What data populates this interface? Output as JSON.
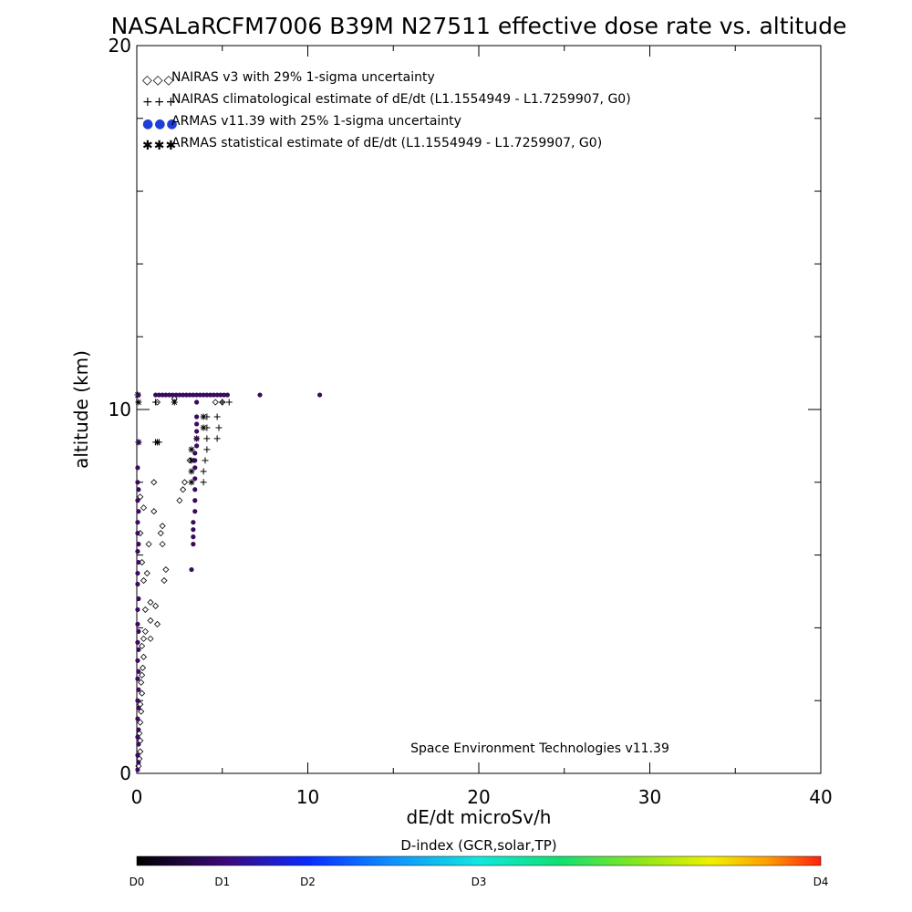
{
  "chart_data": {
    "type": "scatter",
    "title": "NASALaRCFM7006  B39M N27511 effective dose rate vs. altitude",
    "xlabel": "dE/dt microSv/h",
    "ylabel": "altitude (km)",
    "xlim": [
      0,
      40
    ],
    "ylim": [
      0,
      20
    ],
    "x_ticks": [
      0,
      10,
      20,
      30,
      40
    ],
    "y_ticks": [
      0,
      10,
      20
    ],
    "x_minor_step": 5,
    "y_minor_step": 2,
    "grid": false,
    "legend_position": "top-left",
    "credit": "Space Environment Technologies v11.39",
    "legend": [
      {
        "symbols": "◇◇◇",
        "label": "NAIRAS v3 with 29% 1-sigma uncertainty",
        "color": "#000000"
      },
      {
        "symbols": "+++",
        "label": "NAIRAS climatological estimate of dE/dt (L1.1554949 - L1.7259907, G0)",
        "color": "#000000"
      },
      {
        "symbols": "●●●",
        "label": "ARMAS v11.39 with 25% 1-sigma uncertainty",
        "color": "#1f3fd8"
      },
      {
        "symbols": "✱✱✱",
        "label": "ARMAS statistical estimate of dE/dt (L1.1554949 - L1.7259907, G0)",
        "color": "#000000"
      }
    ],
    "series": [
      {
        "name": "NAIRAS v3 with 29% 1-sigma uncertainty",
        "marker": "diamond",
        "color": "#000000",
        "points": [
          [
            0.1,
            0.2
          ],
          [
            0.15,
            0.4
          ],
          [
            0.2,
            0.6
          ],
          [
            0.2,
            0.9
          ],
          [
            0.15,
            1.1
          ],
          [
            0.2,
            1.4
          ],
          [
            0.25,
            1.7
          ],
          [
            0.2,
            1.9
          ],
          [
            0.3,
            2.2
          ],
          [
            0.25,
            2.5
          ],
          [
            0.3,
            2.7
          ],
          [
            0.35,
            2.9
          ],
          [
            0.4,
            3.2
          ],
          [
            0.3,
            3.5
          ],
          [
            0.4,
            3.7
          ],
          [
            0.5,
            3.9
          ],
          [
            0.8,
            3.7
          ],
          [
            0.8,
            4.2
          ],
          [
            1.2,
            4.1
          ],
          [
            0.5,
            4.5
          ],
          [
            1.1,
            4.6
          ],
          [
            0.8,
            4.7
          ],
          [
            0.4,
            5.3
          ],
          [
            0.6,
            5.5
          ],
          [
            1.6,
            5.3
          ],
          [
            1.7,
            5.6
          ],
          [
            0.3,
            5.8
          ],
          [
            0.7,
            6.3
          ],
          [
            1.5,
            6.3
          ],
          [
            0.2,
            6.6
          ],
          [
            1.4,
            6.6
          ],
          [
            1.5,
            6.8
          ],
          [
            1.0,
            7.2
          ],
          [
            0.4,
            7.3
          ],
          [
            0.2,
            7.6
          ],
          [
            2.5,
            7.5
          ],
          [
            2.7,
            7.8
          ],
          [
            2.8,
            8.0
          ],
          [
            1.0,
            8.0
          ],
          [
            3.1,
            8.6
          ],
          [
            1.2,
            10.2
          ],
          [
            2.2,
            10.3
          ],
          [
            4.6,
            10.2
          ],
          [
            5.0,
            10.2
          ]
        ]
      },
      {
        "name": "NAIRAS climatological estimate of dE/dt (L1.1554949 - L1.7259907, G0)",
        "marker": "plus",
        "color": "#000000",
        "points": [
          [
            1.1,
            10.2
          ],
          [
            5.0,
            10.2
          ],
          [
            5.4,
            10.2
          ],
          [
            4.1,
            9.8
          ],
          [
            4.7,
            9.8
          ],
          [
            4.1,
            9.5
          ],
          [
            4.8,
            9.5
          ],
          [
            4.1,
            9.2
          ],
          [
            4.7,
            9.2
          ],
          [
            4.1,
            8.9
          ],
          [
            4.0,
            8.6
          ],
          [
            3.9,
            8.3
          ],
          [
            3.9,
            8.0
          ],
          [
            1.3,
            9.1
          ],
          [
            1.1,
            9.1
          ]
        ]
      },
      {
        "name": "ARMAS statistical estimate of dE/dt (L1.1554949 - L1.7259907, G0)",
        "marker": "asterisk",
        "color": "#000000",
        "points": [
          [
            0.05,
            10.4
          ],
          [
            0.1,
            10.2
          ],
          [
            2.2,
            10.2
          ],
          [
            3.9,
            9.8
          ],
          [
            3.9,
            9.5
          ],
          [
            3.5,
            9.2
          ],
          [
            3.2,
            8.9
          ],
          [
            3.2,
            8.6
          ],
          [
            3.2,
            8.3
          ],
          [
            3.2,
            8.0
          ],
          [
            1.2,
            9.1
          ],
          [
            0.1,
            9.1
          ]
        ]
      },
      {
        "name": "ARMAS v11.39 with 25% 1-sigma uncertainty",
        "marker": "filled-circle",
        "color": "#3a0a5e",
        "points": [
          [
            0.05,
            0.1
          ],
          [
            0.1,
            0.3
          ],
          [
            0.05,
            0.5
          ],
          [
            0.1,
            0.8
          ],
          [
            0.05,
            1.0
          ],
          [
            0.1,
            1.2
          ],
          [
            0.05,
            1.5
          ],
          [
            0.1,
            1.8
          ],
          [
            0.05,
            2.0
          ],
          [
            0.1,
            2.3
          ],
          [
            0.05,
            2.6
          ],
          [
            0.1,
            2.8
          ],
          [
            0.05,
            3.1
          ],
          [
            0.1,
            3.4
          ],
          [
            0.05,
            3.6
          ],
          [
            0.1,
            3.9
          ],
          [
            0.05,
            4.1
          ],
          [
            0.05,
            4.5
          ],
          [
            0.1,
            4.8
          ],
          [
            0.05,
            5.2
          ],
          [
            0.05,
            5.5
          ],
          [
            0.1,
            5.8
          ],
          [
            0.05,
            6.1
          ],
          [
            0.1,
            6.3
          ],
          [
            0.05,
            6.6
          ],
          [
            0.05,
            6.9
          ],
          [
            0.1,
            7.2
          ],
          [
            0.05,
            7.5
          ],
          [
            0.1,
            7.8
          ],
          [
            0.05,
            8.0
          ],
          [
            0.05,
            8.4
          ],
          [
            0.1,
            9.1
          ],
          [
            0.1,
            10.4
          ],
          [
            1.1,
            10.4
          ],
          [
            1.3,
            10.4
          ],
          [
            1.5,
            10.4
          ],
          [
            1.7,
            10.4
          ],
          [
            1.9,
            10.4
          ],
          [
            2.1,
            10.4
          ],
          [
            2.3,
            10.4
          ],
          [
            2.5,
            10.4
          ],
          [
            2.7,
            10.4
          ],
          [
            2.9,
            10.4
          ],
          [
            3.1,
            10.4
          ],
          [
            3.3,
            10.4
          ],
          [
            3.5,
            10.4
          ],
          [
            3.7,
            10.4
          ],
          [
            3.9,
            10.4
          ],
          [
            4.1,
            10.4
          ],
          [
            4.3,
            10.4
          ],
          [
            4.5,
            10.4
          ],
          [
            4.7,
            10.4
          ],
          [
            4.9,
            10.4
          ],
          [
            5.1,
            10.4
          ],
          [
            5.3,
            10.4
          ],
          [
            7.2,
            10.4
          ],
          [
            10.7,
            10.4
          ],
          [
            3.5,
            10.2
          ],
          [
            3.5,
            9.8
          ],
          [
            3.5,
            9.6
          ],
          [
            3.5,
            9.4
          ],
          [
            3.5,
            9.2
          ],
          [
            3.5,
            9.0
          ],
          [
            3.4,
            8.8
          ],
          [
            3.4,
            8.6
          ],
          [
            3.4,
            8.4
          ],
          [
            3.4,
            8.1
          ],
          [
            3.4,
            7.8
          ],
          [
            3.4,
            7.5
          ],
          [
            3.4,
            7.2
          ],
          [
            3.3,
            6.9
          ],
          [
            3.3,
            6.7
          ],
          [
            3.3,
            6.5
          ],
          [
            3.3,
            6.3
          ],
          [
            3.2,
            5.6
          ]
        ]
      }
    ],
    "colorbar": {
      "title": "D-index (GCR,solar,TP)",
      "labels": [
        {
          "text": "D0",
          "pos": 0.0
        },
        {
          "text": "D1",
          "pos": 0.125
        },
        {
          "text": "D2",
          "pos": 0.25
        },
        {
          "text": "D3",
          "pos": 0.5
        },
        {
          "text": "D4",
          "pos": 1.0
        }
      ],
      "gradient_stops": [
        {
          "pos": 0.0,
          "color": "#000000"
        },
        {
          "pos": 0.13,
          "color": "#3d0a78"
        },
        {
          "pos": 0.25,
          "color": "#0a2aff"
        },
        {
          "pos": 0.37,
          "color": "#0f8fff"
        },
        {
          "pos": 0.5,
          "color": "#10e8e0"
        },
        {
          "pos": 0.62,
          "color": "#10e070"
        },
        {
          "pos": 0.74,
          "color": "#8fe818"
        },
        {
          "pos": 0.84,
          "color": "#f0f000"
        },
        {
          "pos": 0.92,
          "color": "#ffa000"
        },
        {
          "pos": 1.0,
          "color": "#ff2010"
        }
      ]
    }
  }
}
